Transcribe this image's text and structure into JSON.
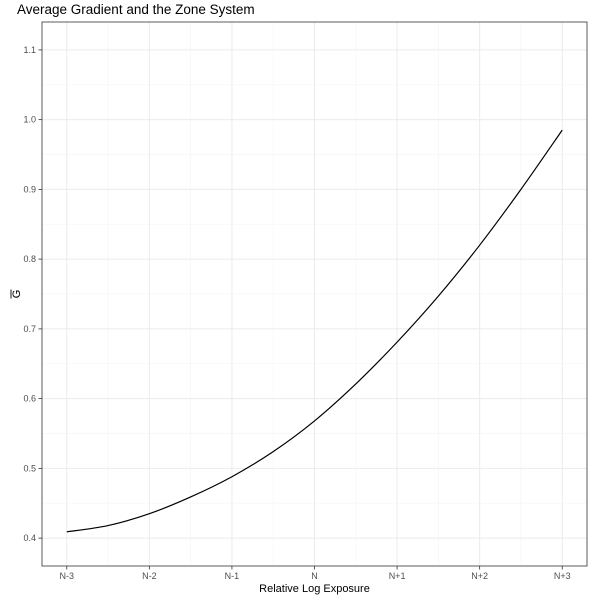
{
  "chart_data": {
    "type": "line",
    "title": "Average Gradient and the Zone System",
    "xlabel": "Relative Log Exposure",
    "ylabel": "G",
    "ylabel_overline": true,
    "x_ticks": [
      {
        "value": -3,
        "label": "N-3"
      },
      {
        "value": -2,
        "label": "N-2"
      },
      {
        "value": -1,
        "label": "N-1"
      },
      {
        "value": 0,
        "label": "N"
      },
      {
        "value": 1,
        "label": "N+1"
      },
      {
        "value": 2,
        "label": "N+2"
      },
      {
        "value": 3,
        "label": "N+3"
      }
    ],
    "y_ticks": [
      0.4,
      0.5,
      0.6,
      0.7,
      0.8,
      0.9,
      1.0,
      1.1
    ],
    "xlim": [
      -3.3,
      3.3
    ],
    "ylim": [
      0.36,
      1.14
    ],
    "grid": true,
    "series": [
      {
        "color": "#000000",
        "x": [
          -3,
          -2.5,
          -2,
          -1.5,
          -1,
          -0.5,
          0,
          0.5,
          1,
          1.5,
          2,
          2.5,
          3
        ],
        "y": [
          0.409,
          0.418,
          0.435,
          0.459,
          0.488,
          0.524,
          0.568,
          0.621,
          0.681,
          0.747,
          0.82,
          0.9,
          0.985
        ]
      }
    ]
  }
}
